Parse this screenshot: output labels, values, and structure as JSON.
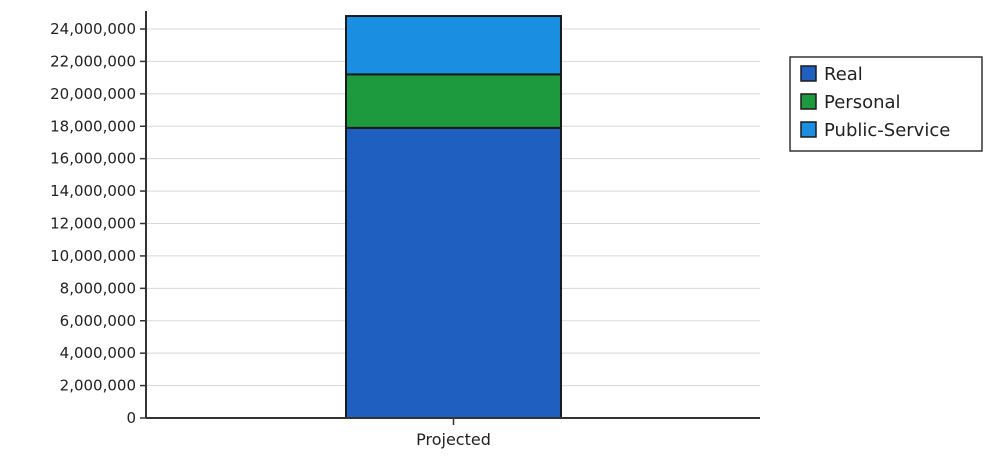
{
  "chart_data": {
    "type": "bar",
    "stacked": true,
    "categories": [
      "Projected"
    ],
    "series": [
      {
        "name": "Real",
        "values": [
          17900000
        ],
        "color": "#1f5fbf"
      },
      {
        "name": "Personal",
        "values": [
          3300000
        ],
        "color": "#1e9a3e"
      },
      {
        "name": "Public-Service",
        "values": [
          3600000
        ],
        "color": "#1a8ee0"
      }
    ],
    "ylim": [
      0,
      24000000
    ],
    "y_ticks": [
      0,
      2000000,
      4000000,
      6000000,
      8000000,
      10000000,
      12000000,
      14000000,
      16000000,
      18000000,
      20000000,
      22000000,
      24000000
    ],
    "y_tick_labels": [
      "0",
      "2,000,000",
      "4,000,000",
      "6,000,000",
      "8,000,000",
      "10,000,000",
      "12,000,000",
      "14,000,000",
      "16,000,000",
      "18,000,000",
      "20,000,000",
      "22,000,000",
      "24,000,000"
    ],
    "grid": true,
    "legend_position": "right",
    "title": "",
    "xlabel": "",
    "ylabel": ""
  }
}
